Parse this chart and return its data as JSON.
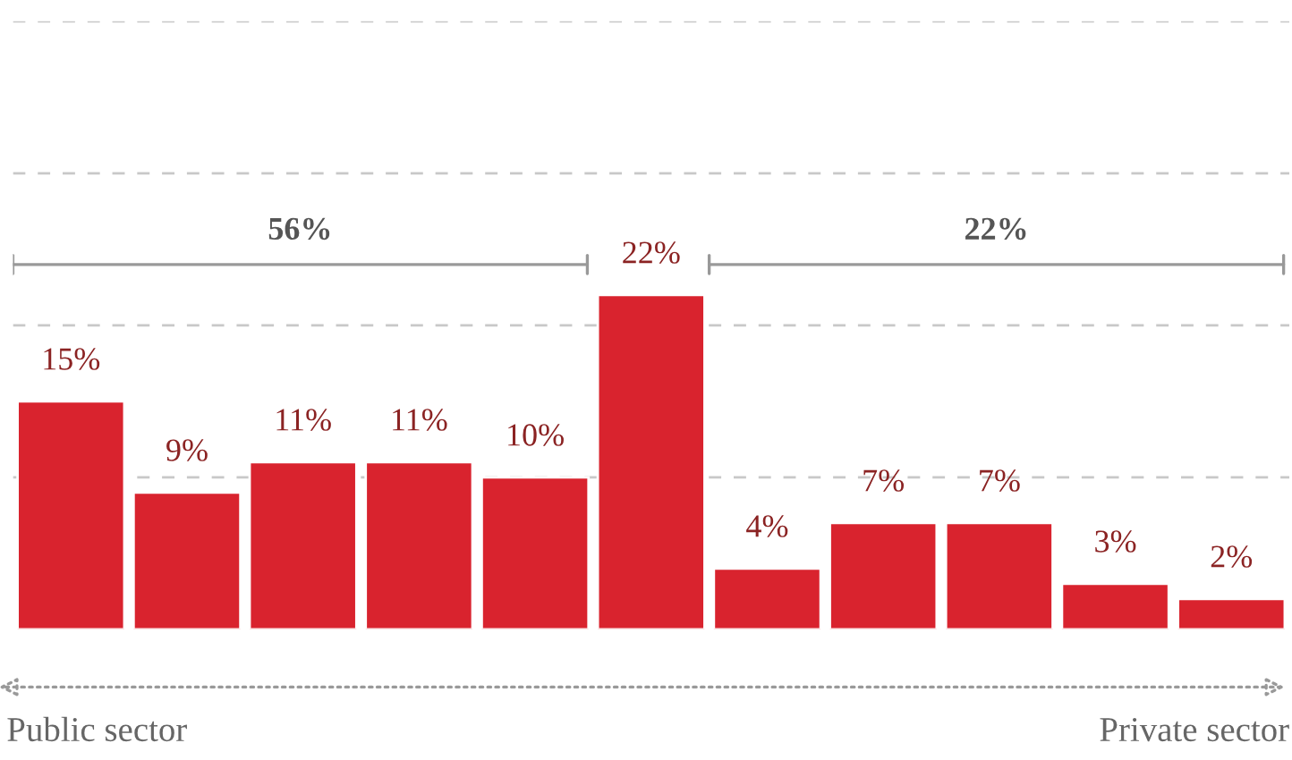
{
  "chart_data": {
    "type": "bar",
    "categories": [
      null,
      null,
      null,
      null,
      null,
      null,
      null,
      null,
      null,
      null,
      null
    ],
    "values": [
      15,
      9,
      11,
      11,
      10,
      22,
      4,
      7,
      7,
      3,
      2
    ],
    "value_labels": [
      "15%",
      "9%",
      "11%",
      "11%",
      "10%",
      "22%",
      "4%",
      "7%",
      "7%",
      "3%",
      "2%"
    ],
    "color": "#d9232e",
    "ylim": [
      0,
      40
    ],
    "yticks": [
      {
        "value": 10,
        "label": null
      },
      {
        "value": 20,
        "label": null
      },
      {
        "value": 30,
        "label": null
      },
      {
        "value": 40,
        "label": null
      }
    ],
    "grid": "y",
    "annotations": [
      "56%",
      "22%",
      "Public sector",
      "Private sector"
    ]
  }
}
